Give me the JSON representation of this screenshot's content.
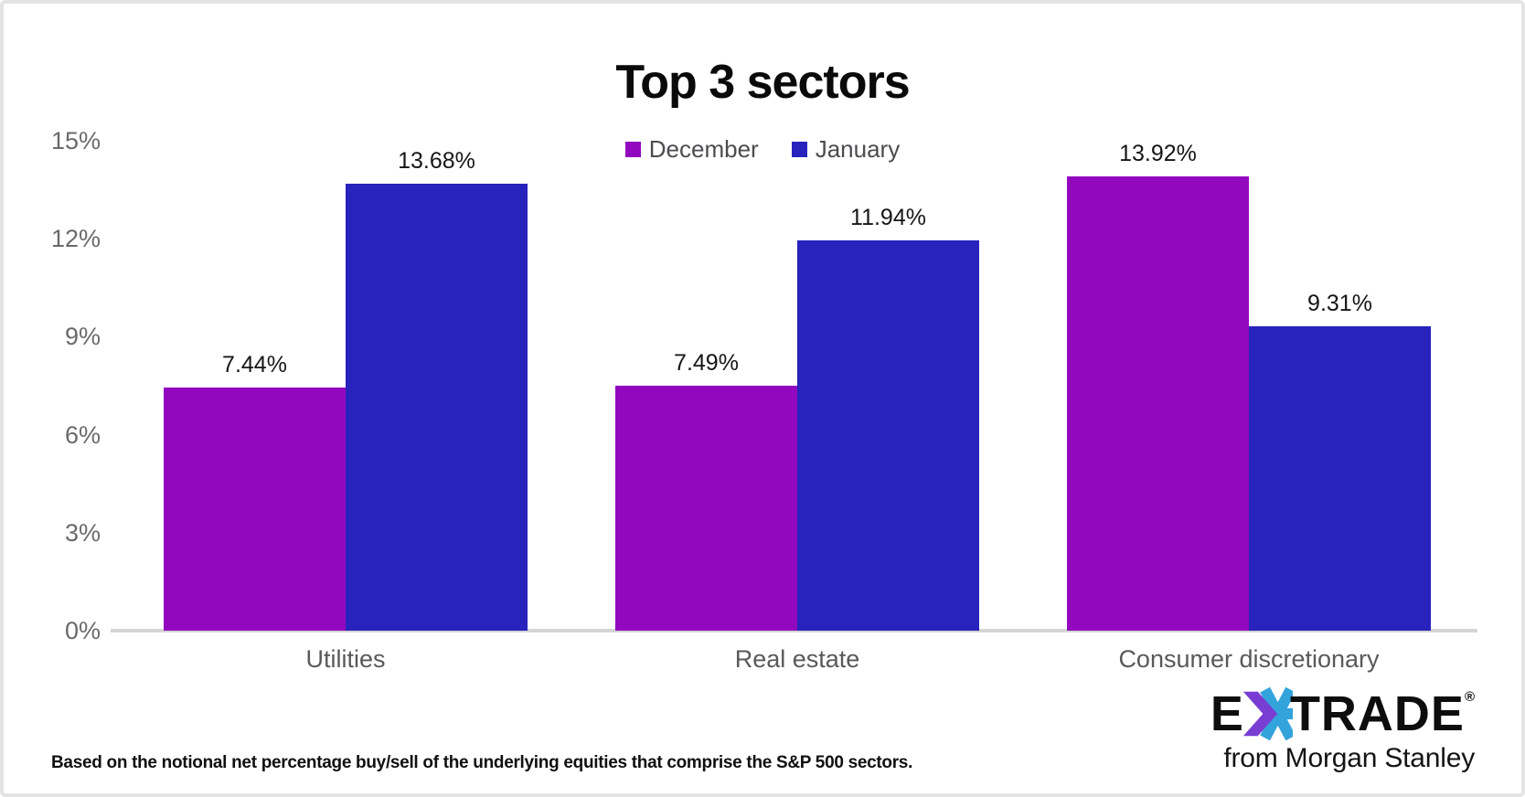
{
  "chart_data": {
    "type": "bar",
    "title": "Top 3 sectors",
    "categories": [
      "Utilities",
      "Real estate",
      "Consumer discretionary"
    ],
    "series": [
      {
        "name": "December",
        "color": "#9208BE",
        "values": [
          7.44,
          7.49,
          13.92
        ],
        "labels": [
          "7.44%",
          "7.49%",
          "13.92%"
        ]
      },
      {
        "name": "January",
        "color": "#2823BC",
        "values": [
          13.68,
          11.94,
          9.31
        ],
        "labels": [
          "13.68%",
          "11.94%",
          "9.31%"
        ]
      }
    ],
    "y_axis": {
      "ticks": [
        "15%",
        "12%",
        "9%",
        "6%",
        "3%",
        "0%"
      ],
      "min": 0,
      "max": 15,
      "step": 3,
      "unit": "%"
    },
    "legend_position": "top-center",
    "grid": false,
    "baseline_color": "#D5D5D5"
  },
  "footnote": "Based on the notional net percentage buy/sell of the underlying equities that comprise the S&P 500 sectors.",
  "logo": {
    "e": "E",
    "trade": "TRADE",
    "reg": "®",
    "tagline": "from Morgan Stanley",
    "star_purple": "#7A3DD3",
    "star_blue": "#33A3DC"
  }
}
